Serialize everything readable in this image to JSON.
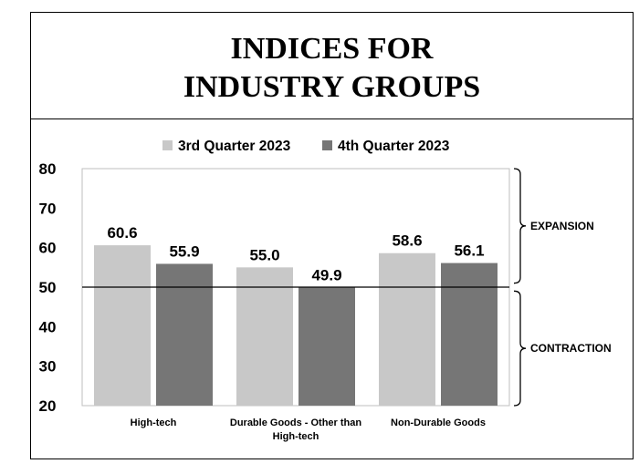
{
  "chart_data": {
    "type": "bar",
    "title_lines": [
      "INDICES FOR",
      "INDUSTRY GROUPS"
    ],
    "categories": [
      [
        "High-tech"
      ],
      [
        "Durable Goods - Other than",
        "High-tech"
      ],
      [
        "Non-Durable Goods"
      ]
    ],
    "series": [
      {
        "name": "3rd Quarter 2023",
        "values": [
          60.6,
          55.0,
          58.6
        ],
        "color": "#c8c8c8"
      },
      {
        "name": "4th Quarter 2023",
        "values": [
          55.9,
          49.9,
          56.1
        ],
        "color": "#767676"
      }
    ],
    "data_labels": [
      [
        "60.6",
        "55.0",
        "58.6"
      ],
      [
        "55.9",
        "49.9",
        "56.1"
      ]
    ],
    "ylim": [
      20,
      80
    ],
    "yticks": [
      "20",
      "30",
      "40",
      "50",
      "60",
      "70",
      "80"
    ],
    "reference_line": 50,
    "legend": "top",
    "annotations": [
      {
        "text": "EXPANSION",
        "range": [
          50,
          80
        ]
      },
      {
        "text": "CONTRACTION",
        "range": [
          20,
          50
        ]
      }
    ],
    "grid": false
  }
}
